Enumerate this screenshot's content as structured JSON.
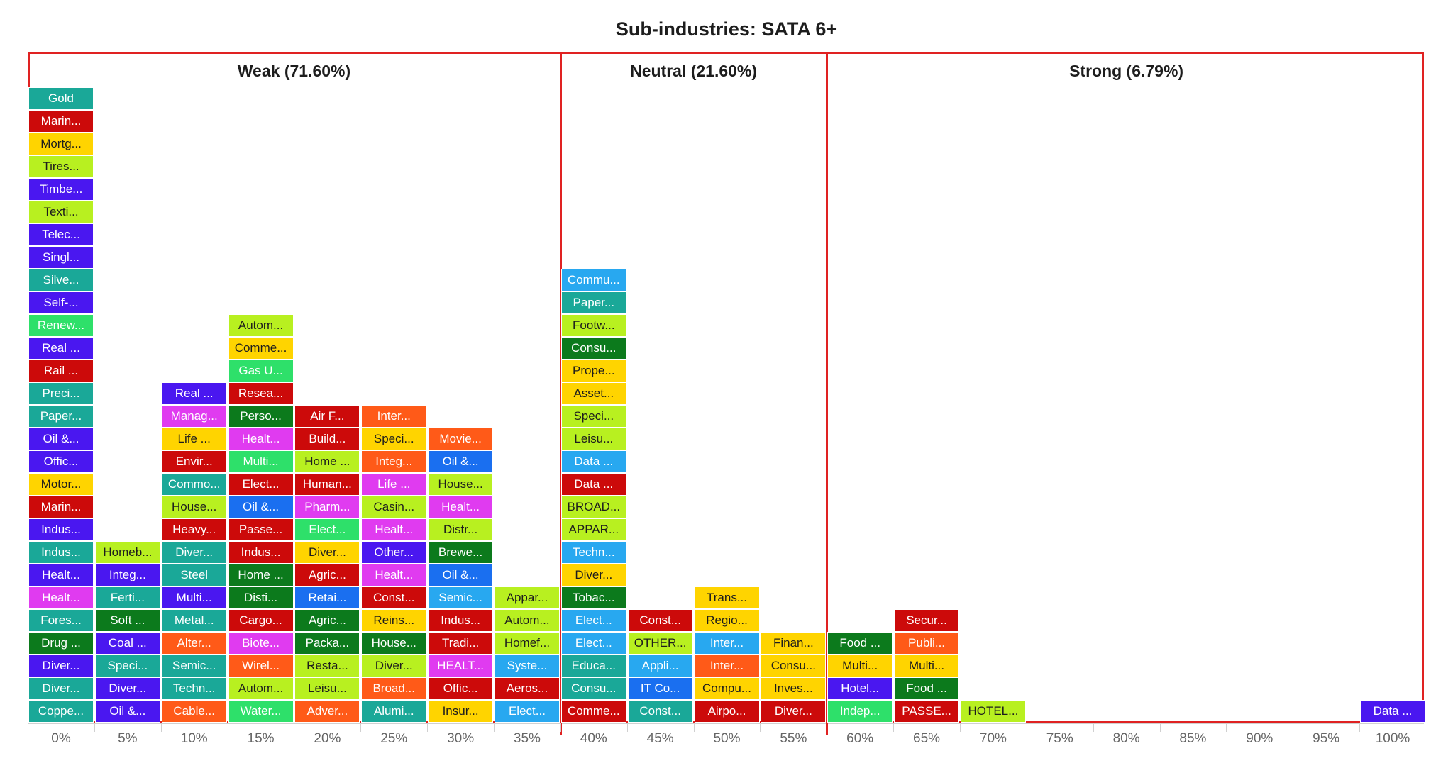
{
  "title": "Sub-industries: SATA 6+",
  "zones": [
    {
      "label": "Weak (71.60%)",
      "from": -0.025,
      "to": 0.375
    },
    {
      "label": "Neutral (21.60%)",
      "from": 0.375,
      "to": 0.575
    },
    {
      "label": "Strong (6.79%)",
      "from": 0.575,
      "to": 1.025
    }
  ],
  "x_ticks": [
    "0%",
    "5%",
    "10%",
    "15%",
    "20%",
    "25%",
    "30%",
    "35%",
    "40%",
    "45%",
    "50%",
    "55%",
    "60%",
    "65%",
    "70%",
    "75%",
    "80%",
    "85%",
    "90%",
    "95%",
    "100%"
  ],
  "colors": {
    "frame": "#e02222",
    "teal": "#1aa898",
    "red": "#cc0a0a",
    "yellow": "#ffd400",
    "lime": "#b8f020",
    "violet": "#4a17f0",
    "green": "#2ee06a",
    "darkgreen": "#0c7a1c",
    "magenta": "#e03bf0",
    "blue": "#1a6ff0",
    "orange": "#ff5a18",
    "sky": "#28a8f0"
  },
  "chart_data": {
    "type": "table",
    "title": "Sub-industries: SATA 6+",
    "xlabel": "",
    "ylabel": "",
    "xlim": [
      -0.025,
      1.025
    ],
    "columns": [
      {
        "x": 0.0,
        "cells": [
          {
            "t": "Coppe...",
            "c": "teal"
          },
          {
            "t": "Diver...",
            "c": "teal"
          },
          {
            "t": "Diver...",
            "c": "violet"
          },
          {
            "t": "Drug ...",
            "c": "darkgreen"
          },
          {
            "t": "Fores...",
            "c": "teal"
          },
          {
            "t": "Healt...",
            "c": "magenta"
          },
          {
            "t": "Healt...",
            "c": "violet"
          },
          {
            "t": "Indus...",
            "c": "teal"
          },
          {
            "t": "Indus...",
            "c": "violet"
          },
          {
            "t": "Marin...",
            "c": "red"
          },
          {
            "t": "Motor...",
            "c": "yellow"
          },
          {
            "t": "Offic...",
            "c": "violet"
          },
          {
            "t": "Oil &...",
            "c": "violet"
          },
          {
            "t": "Paper...",
            "c": "teal"
          },
          {
            "t": "Preci...",
            "c": "teal"
          },
          {
            "t": "Rail ...",
            "c": "red"
          },
          {
            "t": "Real ...",
            "c": "violet"
          },
          {
            "t": "Renew...",
            "c": "green"
          },
          {
            "t": "Self-...",
            "c": "violet"
          },
          {
            "t": "Silve...",
            "c": "teal"
          },
          {
            "t": "Singl...",
            "c": "violet"
          },
          {
            "t": "Telec...",
            "c": "violet"
          },
          {
            "t": "Texti...",
            "c": "lime"
          },
          {
            "t": "Timbe...",
            "c": "violet"
          },
          {
            "t": "Tires...",
            "c": "lime"
          },
          {
            "t": "Mortg...",
            "c": "yellow"
          },
          {
            "t": "Marin...",
            "c": "red"
          },
          {
            "t": "Gold",
            "c": "teal"
          }
        ]
      },
      {
        "x": 0.05,
        "cells": [
          {
            "t": "Oil &...",
            "c": "violet"
          },
          {
            "t": "Diver...",
            "c": "violet"
          },
          {
            "t": "Speci...",
            "c": "teal"
          },
          {
            "t": "Coal ...",
            "c": "violet"
          },
          {
            "t": "Soft ...",
            "c": "darkgreen"
          },
          {
            "t": "Ferti...",
            "c": "teal"
          },
          {
            "t": "Integ...",
            "c": "violet"
          },
          {
            "t": "Homeb...",
            "c": "lime"
          }
        ]
      },
      {
        "x": 0.1,
        "cells": [
          {
            "t": "Cable...",
            "c": "orange"
          },
          {
            "t": "Techn...",
            "c": "teal"
          },
          {
            "t": "Semic...",
            "c": "teal"
          },
          {
            "t": "Alter...",
            "c": "orange"
          },
          {
            "t": "Metal...",
            "c": "teal"
          },
          {
            "t": "Multi...",
            "c": "violet"
          },
          {
            "t": "Steel",
            "c": "teal"
          },
          {
            "t": "Diver...",
            "c": "teal"
          },
          {
            "t": "Heavy...",
            "c": "red"
          },
          {
            "t": "House...",
            "c": "lime"
          },
          {
            "t": "Commo...",
            "c": "teal"
          },
          {
            "t": "Envir...",
            "c": "red"
          },
          {
            "t": "Life ...",
            "c": "yellow"
          },
          {
            "t": "Manag...",
            "c": "magenta"
          },
          {
            "t": "Real ...",
            "c": "violet"
          }
        ]
      },
      {
        "x": 0.15,
        "cells": [
          {
            "t": "Water...",
            "c": "green"
          },
          {
            "t": "Autom...",
            "c": "lime"
          },
          {
            "t": "Wirel...",
            "c": "orange"
          },
          {
            "t": "Biote...",
            "c": "magenta"
          },
          {
            "t": "Cargo...",
            "c": "red"
          },
          {
            "t": "Disti...",
            "c": "darkgreen"
          },
          {
            "t": "Home ...",
            "c": "darkgreen"
          },
          {
            "t": "Indus...",
            "c": "red"
          },
          {
            "t": "Passe...",
            "c": "red"
          },
          {
            "t": "Oil &...",
            "c": "blue"
          },
          {
            "t": "Elect...",
            "c": "red"
          },
          {
            "t": "Multi...",
            "c": "green"
          },
          {
            "t": "Healt...",
            "c": "magenta"
          },
          {
            "t": "Perso...",
            "c": "darkgreen"
          },
          {
            "t": "Resea...",
            "c": "red"
          },
          {
            "t": "Gas U...",
            "c": "green"
          },
          {
            "t": "Comme...",
            "c": "yellow"
          },
          {
            "t": "Autom...",
            "c": "lime"
          }
        ]
      },
      {
        "x": 0.2,
        "cells": [
          {
            "t": "Adver...",
            "c": "orange"
          },
          {
            "t": "Leisu...",
            "c": "lime"
          },
          {
            "t": "Resta...",
            "c": "lime"
          },
          {
            "t": "Packa...",
            "c": "darkgreen"
          },
          {
            "t": "Agric...",
            "c": "darkgreen"
          },
          {
            "t": "Retai...",
            "c": "blue"
          },
          {
            "t": "Agric...",
            "c": "red"
          },
          {
            "t": "Diver...",
            "c": "yellow"
          },
          {
            "t": "Elect...",
            "c": "green"
          },
          {
            "t": "Pharm...",
            "c": "magenta"
          },
          {
            "t": "Human...",
            "c": "red"
          },
          {
            "t": "Home ...",
            "c": "lime"
          },
          {
            "t": "Build...",
            "c": "red"
          },
          {
            "t": "Air F...",
            "c": "red"
          }
        ]
      },
      {
        "x": 0.25,
        "cells": [
          {
            "t": "Alumi...",
            "c": "teal"
          },
          {
            "t": "Broad...",
            "c": "orange"
          },
          {
            "t": "Diver...",
            "c": "lime"
          },
          {
            "t": "House...",
            "c": "darkgreen"
          },
          {
            "t": "Reins...",
            "c": "yellow"
          },
          {
            "t": "Const...",
            "c": "red"
          },
          {
            "t": "Healt...",
            "c": "magenta"
          },
          {
            "t": "Other...",
            "c": "violet"
          },
          {
            "t": "Healt...",
            "c": "magenta"
          },
          {
            "t": "Casin...",
            "c": "lime"
          },
          {
            "t": "Life ...",
            "c": "magenta"
          },
          {
            "t": "Integ...",
            "c": "orange"
          },
          {
            "t": "Speci...",
            "c": "yellow"
          },
          {
            "t": "Inter...",
            "c": "orange"
          }
        ]
      },
      {
        "x": 0.3,
        "cells": [
          {
            "t": "Insur...",
            "c": "yellow"
          },
          {
            "t": "Offic...",
            "c": "red"
          },
          {
            "t": "HEALT...",
            "c": "magenta"
          },
          {
            "t": "Tradi...",
            "c": "red"
          },
          {
            "t": "Indus...",
            "c": "red"
          },
          {
            "t": "Semic...",
            "c": "sky"
          },
          {
            "t": "Oil &...",
            "c": "blue"
          },
          {
            "t": "Brewe...",
            "c": "darkgreen"
          },
          {
            "t": "Distr...",
            "c": "lime"
          },
          {
            "t": "Healt...",
            "c": "magenta"
          },
          {
            "t": "House...",
            "c": "lime"
          },
          {
            "t": "Oil &...",
            "c": "blue"
          },
          {
            "t": "Movie...",
            "c": "orange"
          }
        ]
      },
      {
        "x": 0.35,
        "cells": [
          {
            "t": "Elect...",
            "c": "sky"
          },
          {
            "t": "Aeros...",
            "c": "red"
          },
          {
            "t": "Syste...",
            "c": "sky"
          },
          {
            "t": "Homef...",
            "c": "lime"
          },
          {
            "t": "Autom...",
            "c": "lime"
          },
          {
            "t": "Appar...",
            "c": "lime"
          }
        ]
      },
      {
        "x": 0.4,
        "cells": [
          {
            "t": "Comme...",
            "c": "red"
          },
          {
            "t": "Consu...",
            "c": "teal"
          },
          {
            "t": "Educa...",
            "c": "teal"
          },
          {
            "t": "Elect...",
            "c": "sky"
          },
          {
            "t": "Elect...",
            "c": "sky"
          },
          {
            "t": "Tobac...",
            "c": "darkgreen"
          },
          {
            "t": "Diver...",
            "c": "yellow"
          },
          {
            "t": "Techn...",
            "c": "sky"
          },
          {
            "t": "APPAR...",
            "c": "lime"
          },
          {
            "t": "BROAD...",
            "c": "lime"
          },
          {
            "t": "Data ...",
            "c": "red"
          },
          {
            "t": "Data ...",
            "c": "sky"
          },
          {
            "t": "Leisu...",
            "c": "lime"
          },
          {
            "t": "Speci...",
            "c": "lime"
          },
          {
            "t": "Asset...",
            "c": "yellow"
          },
          {
            "t": "Prope...",
            "c": "yellow"
          },
          {
            "t": "Consu...",
            "c": "darkgreen"
          },
          {
            "t": "Footw...",
            "c": "lime"
          },
          {
            "t": "Paper...",
            "c": "teal"
          },
          {
            "t": "Commu...",
            "c": "sky"
          }
        ]
      },
      {
        "x": 0.45,
        "cells": [
          {
            "t": "Const...",
            "c": "teal"
          },
          {
            "t": "IT Co...",
            "c": "blue"
          },
          {
            "t": "Appli...",
            "c": "sky"
          },
          {
            "t": "OTHER...",
            "c": "lime"
          },
          {
            "t": "Const...",
            "c": "red"
          }
        ]
      },
      {
        "x": 0.5,
        "cells": [
          {
            "t": "Airpo...",
            "c": "red"
          },
          {
            "t": "Compu...",
            "c": "yellow"
          },
          {
            "t": "Inter...",
            "c": "orange"
          },
          {
            "t": "Inter...",
            "c": "sky"
          },
          {
            "t": "Regio...",
            "c": "yellow"
          },
          {
            "t": "Trans...",
            "c": "yellow"
          }
        ]
      },
      {
        "x": 0.55,
        "cells": [
          {
            "t": "Diver...",
            "c": "red"
          },
          {
            "t": "Inves...",
            "c": "yellow"
          },
          {
            "t": "Consu...",
            "c": "yellow"
          },
          {
            "t": "Finan...",
            "c": "yellow"
          }
        ]
      },
      {
        "x": 0.6,
        "cells": [
          {
            "t": "Indep...",
            "c": "green"
          },
          {
            "t": "Hotel...",
            "c": "violet"
          },
          {
            "t": "Multi...",
            "c": "yellow"
          },
          {
            "t": "Food ...",
            "c": "darkgreen"
          }
        ]
      },
      {
        "x": 0.65,
        "cells": [
          {
            "t": "PASSE...",
            "c": "red"
          },
          {
            "t": "Food ...",
            "c": "darkgreen"
          },
          {
            "t": "Multi...",
            "c": "yellow"
          },
          {
            "t": "Publi...",
            "c": "orange"
          },
          {
            "t": "Secur...",
            "c": "red"
          }
        ]
      },
      {
        "x": 0.7,
        "cells": [
          {
            "t": "HOTEL...",
            "c": "lime"
          }
        ]
      },
      {
        "x": 1.0,
        "cells": [
          {
            "t": "Data ...",
            "c": "violet"
          }
        ]
      }
    ]
  }
}
